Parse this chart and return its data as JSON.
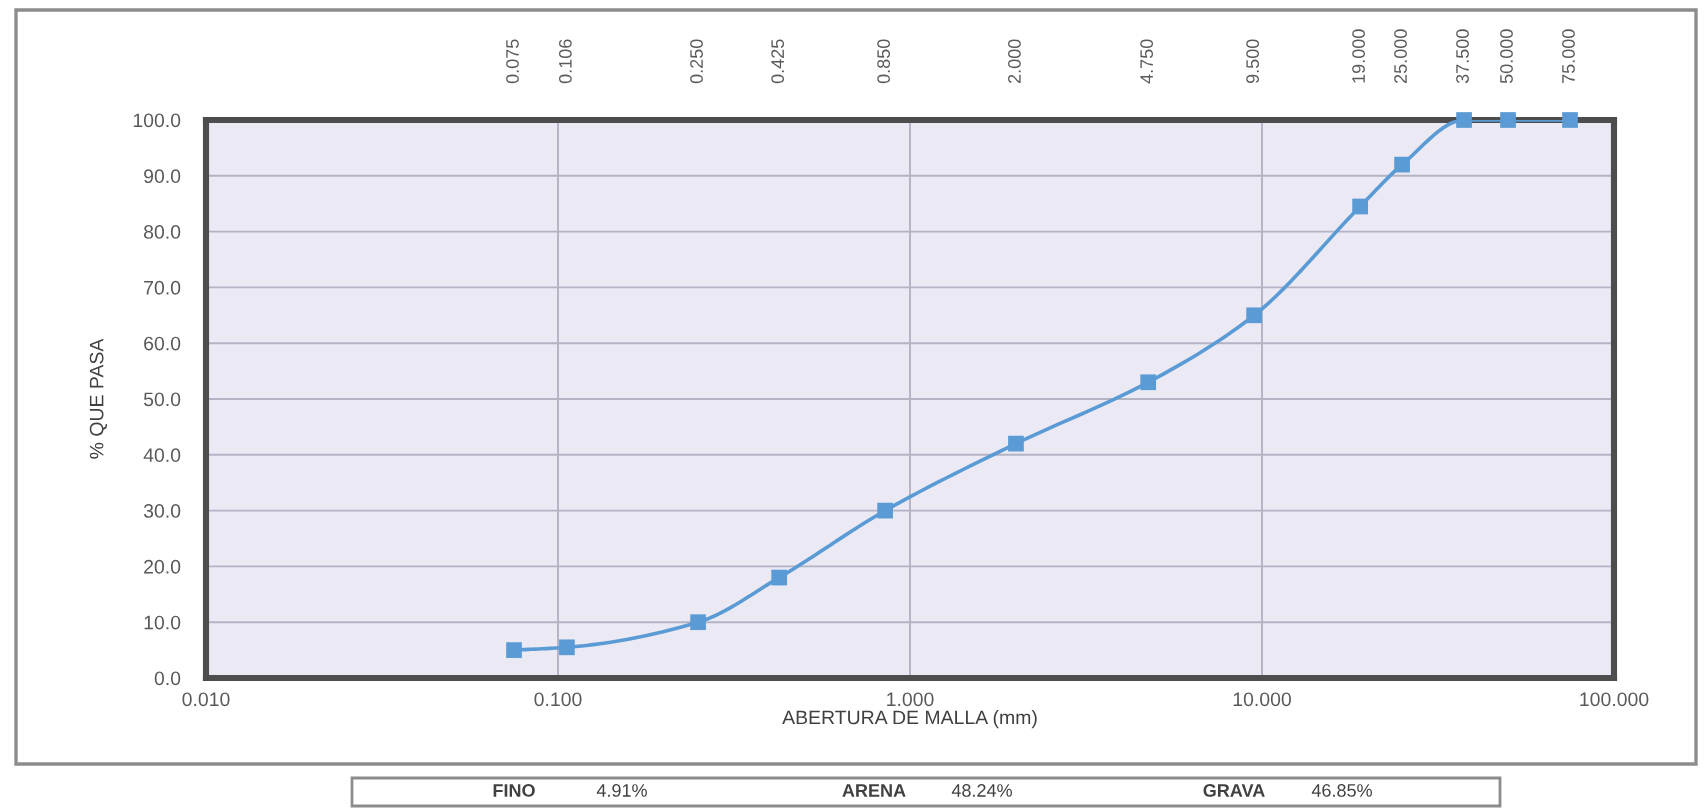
{
  "chart_data": {
    "type": "line",
    "xlabel": "ABERTURA DE MALLA (mm)",
    "ylabel": "% QUE PASA",
    "log": "x",
    "x": [
      0.075,
      0.106,
      0.25,
      0.425,
      0.85,
      2.0,
      4.75,
      9.5,
      19.0,
      25.0,
      37.5,
      50.0,
      75.0
    ],
    "series": [
      {
        "color": "#5b9bd5",
        "values": [
          5.0,
          5.5,
          10.0,
          18.0,
          30.0,
          42.0,
          53.0,
          65.0,
          84.5,
          92.0,
          100,
          100,
          100
        ]
      }
    ],
    "xlim": [
      0.01,
      100
    ],
    "xticks": [
      {
        "value": 0.01,
        "label": "0.010"
      },
      {
        "value": 0.1,
        "label": "0.100"
      },
      {
        "value": 1,
        "label": "1.000"
      },
      {
        "value": 10,
        "label": "10.000"
      },
      {
        "value": 100,
        "label": "100.000"
      }
    ],
    "ylim": [
      0,
      100
    ],
    "yticks": [
      {
        "value": 0,
        "label": "0.0"
      },
      {
        "value": 10,
        "label": "10.0"
      },
      {
        "value": 20,
        "label": "20.0"
      },
      {
        "value": 30,
        "label": "30.0"
      },
      {
        "value": 40,
        "label": "40.0"
      },
      {
        "value": 50,
        "label": "50.0"
      },
      {
        "value": 60,
        "label": "60.0"
      },
      {
        "value": 70,
        "label": "70.0"
      },
      {
        "value": 80,
        "label": "80.0"
      },
      {
        "value": 90,
        "label": "90.0"
      },
      {
        "value": 100,
        "label": "100.0"
      }
    ],
    "grid": true,
    "marker": "square",
    "line_style": "solid",
    "annotations": [
      "0.075",
      "0.106",
      "0.250",
      "0.425",
      "0.850",
      "2.000",
      "4.750",
      "9.500",
      "19.000",
      "25.000",
      "37.500",
      "50.000",
      "75.000",
      "FINO",
      "4.91%",
      "ARENA",
      "48.24%",
      "GRAVA",
      "46.85%"
    ]
  }
}
